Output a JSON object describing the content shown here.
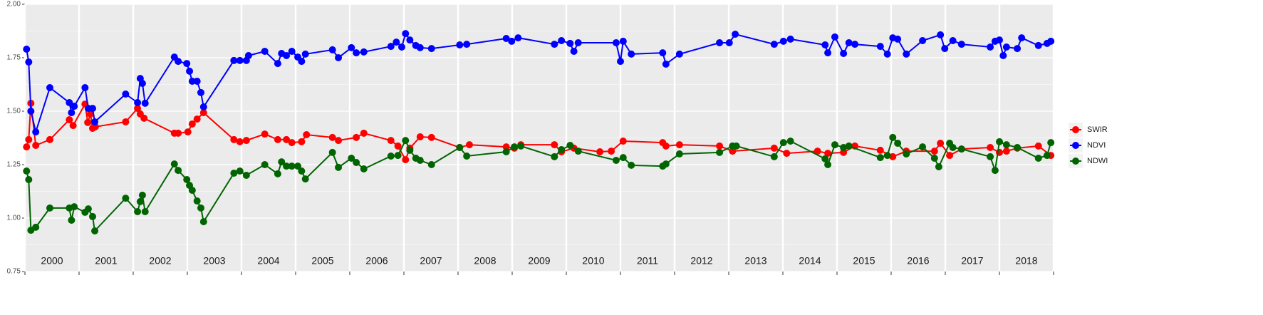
{
  "chart_data": {
    "type": "line",
    "xlim": [
      2000,
      2019
    ],
    "xticks": [
      2000,
      2001,
      2002,
      2003,
      2004,
      2005,
      2006,
      2007,
      2008,
      2009,
      2010,
      2011,
      2012,
      2013,
      2014,
      2015,
      2016,
      2017,
      2018,
      2019
    ],
    "year_labels": [
      "2000",
      "2001",
      "2002",
      "2003",
      "2004",
      "2005",
      "2006",
      "2007",
      "2008",
      "2009",
      "2010",
      "2011",
      "2012",
      "2013",
      "2014",
      "2015",
      "2016",
      "2017",
      "2018"
    ],
    "ylim": [
      0.75,
      2.0
    ],
    "yticks": [
      {
        "value": 0.75,
        "label": "0.75"
      },
      {
        "value": 1.0,
        "label": "1.00"
      },
      {
        "value": 1.25,
        "label": "1.25"
      },
      {
        "value": 1.5,
        "label": "1.50"
      },
      {
        "value": 1.75,
        "label": "1.75"
      },
      {
        "value": 2.0,
        "label": "2.00"
      }
    ],
    "grid": true,
    "legend": "right",
    "series": [
      {
        "name": "SWIR",
        "color": "#ff0000",
        "x": [
          2000.03,
          2000.07,
          2000.11,
          2000.2,
          2000.46,
          2000.82,
          2000.89,
          2001.11,
          2001.16,
          2001.21,
          2001.25,
          2001.3,
          2001.86,
          2002.08,
          2002.13,
          2002.2,
          2002.76,
          2002.83,
          2003.01,
          2003.09,
          2003.18,
          2003.3,
          2003.86,
          2003.97,
          2004.09,
          2004.43,
          2004.67,
          2004.83,
          2004.93,
          2005.11,
          2005.2,
          2005.68,
          2005.79,
          2006.12,
          2006.26,
          2006.76,
          2006.89,
          2007.03,
          2007.11,
          2007.3,
          2007.51,
          2008.03,
          2008.21,
          2008.89,
          2009.04,
          2009.16,
          2009.78,
          2009.91,
          2010.14,
          2010.62,
          2010.83,
          2011.05,
          2011.78,
          2011.84,
          2012.09,
          2012.83,
          2013.07,
          2013.84,
          2014.07,
          2014.64,
          2014.83,
          2015.12,
          2015.33,
          2015.8,
          2016.03,
          2016.28,
          2016.8,
          2016.91,
          2017.08,
          2017.3,
          2017.83,
          2018.0,
          2018.13,
          2018.33,
          2018.72,
          2018.95
        ],
        "values": [
          1.333,
          1.367,
          1.537,
          1.34,
          1.367,
          1.46,
          1.433,
          1.533,
          1.447,
          1.487,
          1.42,
          1.427,
          1.45,
          1.513,
          1.487,
          1.467,
          1.397,
          1.397,
          1.403,
          1.44,
          1.463,
          1.493,
          1.367,
          1.357,
          1.363,
          1.393,
          1.367,
          1.367,
          1.353,
          1.357,
          1.39,
          1.377,
          1.363,
          1.377,
          1.397,
          1.363,
          1.337,
          1.273,
          1.327,
          1.38,
          1.377,
          1.33,
          1.343,
          1.333,
          1.327,
          1.343,
          1.343,
          1.31,
          1.327,
          1.31,
          1.313,
          1.36,
          1.353,
          1.337,
          1.343,
          1.337,
          1.313,
          1.327,
          1.303,
          1.313,
          1.303,
          1.307,
          1.337,
          1.317,
          1.287,
          1.313,
          1.313,
          1.35,
          1.293,
          1.323,
          1.33,
          1.307,
          1.313,
          1.327,
          1.337,
          1.293
        ]
      },
      {
        "name": "NDVI",
        "color": "#0000ff",
        "x": [
          2000.03,
          2000.07,
          2000.11,
          2000.2,
          2000.46,
          2000.82,
          2000.86,
          2000.91,
          2001.11,
          2001.17,
          2001.25,
          2001.29,
          2001.86,
          2002.08,
          2002.13,
          2002.17,
          2002.22,
          2002.76,
          2002.83,
          2002.99,
          2003.04,
          2003.09,
          2003.18,
          2003.25,
          2003.3,
          2003.86,
          2003.97,
          2004.09,
          2004.13,
          2004.43,
          2004.67,
          2004.74,
          2004.83,
          2004.93,
          2005.04,
          2005.11,
          2005.18,
          2005.68,
          2005.79,
          2006.03,
          2006.12,
          2006.26,
          2006.76,
          2006.86,
          2006.96,
          2007.03,
          2007.11,
          2007.22,
          2007.3,
          2007.51,
          2008.03,
          2008.16,
          2008.89,
          2008.99,
          2009.11,
          2009.78,
          2009.91,
          2010.07,
          2010.14,
          2010.22,
          2010.92,
          2011.0,
          2011.05,
          2011.2,
          2011.78,
          2011.84,
          2012.09,
          2012.83,
          2013.01,
          2013.12,
          2013.84,
          2014.01,
          2014.14,
          2014.78,
          2014.83,
          2014.96,
          2015.12,
          2015.22,
          2015.33,
          2015.8,
          2015.93,
          2016.03,
          2016.12,
          2016.28,
          2016.58,
          2016.91,
          2016.99,
          2017.14,
          2017.3,
          2017.83,
          2017.92,
          2018.0,
          2018.07,
          2018.13,
          2018.33,
          2018.41,
          2018.72,
          2018.88,
          2018.95
        ],
        "values": [
          1.79,
          1.73,
          1.5,
          1.403,
          1.61,
          1.54,
          1.493,
          1.523,
          1.61,
          1.513,
          1.513,
          1.45,
          1.58,
          1.54,
          1.653,
          1.63,
          1.537,
          1.753,
          1.733,
          1.723,
          1.687,
          1.64,
          1.64,
          1.587,
          1.52,
          1.737,
          1.737,
          1.737,
          1.76,
          1.78,
          1.723,
          1.77,
          1.76,
          1.78,
          1.753,
          1.733,
          1.767,
          1.787,
          1.75,
          1.797,
          1.773,
          1.777,
          1.803,
          1.823,
          1.8,
          1.863,
          1.833,
          1.807,
          1.797,
          1.793,
          1.81,
          1.813,
          1.84,
          1.827,
          1.843,
          1.813,
          1.83,
          1.817,
          1.78,
          1.82,
          1.82,
          1.733,
          1.827,
          1.767,
          1.773,
          1.72,
          1.767,
          1.82,
          1.82,
          1.86,
          1.813,
          1.827,
          1.837,
          1.81,
          1.773,
          1.847,
          1.77,
          1.82,
          1.813,
          1.803,
          1.767,
          1.843,
          1.837,
          1.767,
          1.83,
          1.857,
          1.793,
          1.83,
          1.813,
          1.8,
          1.827,
          1.833,
          1.76,
          1.8,
          1.793,
          1.843,
          1.807,
          1.817,
          1.827
        ]
      },
      {
        "name": "NDWI",
        "color": "#006400",
        "x": [
          2000.03,
          2000.07,
          2000.11,
          2000.2,
          2000.46,
          2000.82,
          2000.86,
          2000.91,
          2001.11,
          2001.17,
          2001.25,
          2001.29,
          2001.86,
          2002.08,
          2002.13,
          2002.17,
          2002.22,
          2002.76,
          2002.83,
          2002.99,
          2003.04,
          2003.09,
          2003.18,
          2003.25,
          2003.3,
          2003.86,
          2003.97,
          2004.09,
          2004.43,
          2004.67,
          2004.74,
          2004.83,
          2004.93,
          2005.04,
          2005.11,
          2005.18,
          2005.68,
          2005.79,
          2006.03,
          2006.12,
          2006.26,
          2006.76,
          2006.89,
          2007.03,
          2007.11,
          2007.22,
          2007.3,
          2007.51,
          2008.03,
          2008.16,
          2008.89,
          2009.04,
          2009.16,
          2009.78,
          2009.91,
          2010.07,
          2010.22,
          2010.92,
          2011.05,
          2011.2,
          2011.78,
          2011.84,
          2012.09,
          2012.83,
          2013.07,
          2013.14,
          2013.84,
          2014.01,
          2014.14,
          2014.78,
          2014.83,
          2014.96,
          2015.12,
          2015.22,
          2015.8,
          2015.93,
          2016.03,
          2016.12,
          2016.28,
          2016.58,
          2016.8,
          2016.88,
          2017.08,
          2017.14,
          2017.3,
          2017.83,
          2017.92,
          2018.0,
          2018.13,
          2018.33,
          2018.72,
          2018.88,
          2018.95
        ],
        "values": [
          1.22,
          1.18,
          0.943,
          0.957,
          1.047,
          1.047,
          0.99,
          1.053,
          1.027,
          1.043,
          1.007,
          0.94,
          1.093,
          1.03,
          1.077,
          1.107,
          1.03,
          1.253,
          1.223,
          1.18,
          1.153,
          1.13,
          1.08,
          1.047,
          0.983,
          1.21,
          1.22,
          1.2,
          1.25,
          1.207,
          1.263,
          1.243,
          1.243,
          1.243,
          1.22,
          1.183,
          1.307,
          1.237,
          1.28,
          1.26,
          1.23,
          1.29,
          1.293,
          1.363,
          1.317,
          1.28,
          1.27,
          1.25,
          1.33,
          1.29,
          1.31,
          1.333,
          1.337,
          1.287,
          1.32,
          1.34,
          1.313,
          1.27,
          1.283,
          1.247,
          1.243,
          1.253,
          1.3,
          1.307,
          1.337,
          1.337,
          1.287,
          1.353,
          1.36,
          1.277,
          1.25,
          1.343,
          1.33,
          1.337,
          1.283,
          1.293,
          1.377,
          1.35,
          1.3,
          1.333,
          1.28,
          1.24,
          1.35,
          1.33,
          1.323,
          1.287,
          1.223,
          1.357,
          1.343,
          1.33,
          1.28,
          1.293,
          1.353
        ]
      }
    ]
  }
}
